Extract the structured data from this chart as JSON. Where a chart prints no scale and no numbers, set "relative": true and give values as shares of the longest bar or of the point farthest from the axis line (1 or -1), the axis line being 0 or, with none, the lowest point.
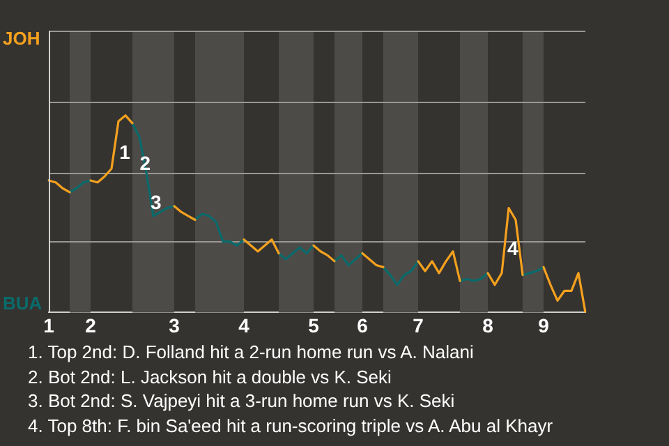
{
  "chart_data": {
    "type": "line",
    "relative": true,
    "categories": [
      "1",
      null,
      null,
      null,
      null,
      null,
      "2",
      null,
      null,
      null,
      null,
      null,
      null,
      null,
      null,
      null,
      null,
      null,
      "3",
      null,
      null,
      null,
      null,
      null,
      null,
      null,
      null,
      null,
      "4",
      null,
      null,
      null,
      null,
      null,
      null,
      null,
      null,
      null,
      "5",
      null,
      null,
      null,
      null,
      null,
      null,
      "6",
      null,
      null,
      null,
      null,
      null,
      null,
      null,
      "7",
      null,
      null,
      null,
      null,
      null,
      null,
      null,
      null,
      null,
      "8",
      null,
      null,
      null,
      null,
      null,
      null,
      null,
      "9",
      null,
      null,
      null,
      null,
      null,
      null
    ],
    "ref_lines": [
      {
        "axis": "y",
        "value": 0.36,
        "color": "#9a9894"
      },
      {
        "axis": "y",
        "value": 0.71,
        "color": "#9a9894"
      },
      {
        "axis": "y",
        "value": 1.07,
        "color": "#9a9894"
      },
      {
        "axis": "y",
        "value": 1.43,
        "color": "#9a9894"
      }
    ],
    "legend": false,
    "marker": "none",
    "line_style": "solid",
    "series": [
      {
        "name": "JOH",
        "color": "#f5a11e",
        "values": [
          0.67,
          0.66,
          0.63,
          0.61,
          null,
          null,
          0.67,
          0.66,
          0.69,
          0.73,
          0.97,
          1,
          0.96,
          null,
          null,
          null,
          null,
          null,
          0.54,
          0.51,
          0.49,
          0.47,
          null,
          null,
          null,
          null,
          null,
          null,
          0.37,
          0.34,
          0.31,
          0.34,
          0.37,
          0.3,
          null,
          null,
          null,
          null,
          0.34,
          0.31,
          0.29,
          0.26,
          null,
          null,
          null,
          0.3,
          0.27,
          0.24,
          0.23,
          null,
          null,
          null,
          null,
          0.26,
          0.21,
          0.26,
          0.2,
          0.26,
          0.31,
          0.16,
          null,
          null,
          null,
          0.2,
          0.14,
          0.2,
          0.53,
          0.47,
          0.19,
          null,
          null,
          0.23,
          0.14,
          0.06,
          0.11,
          0.11,
          0.2,
          0
        ]
      },
      {
        "name": "BUA",
        "color": "#0a6b6b",
        "values": [
          null,
          null,
          null,
          0.61,
          0.63,
          0.66,
          0.67,
          null,
          null,
          null,
          null,
          null,
          0.96,
          0.89,
          0.71,
          0.49,
          0.51,
          0.53,
          0.54,
          null,
          null,
          0.47,
          0.5,
          0.49,
          0.46,
          0.36,
          0.36,
          0.34,
          0.37,
          null,
          null,
          null,
          null,
          0.3,
          0.27,
          0.3,
          0.33,
          0.3,
          0.34,
          null,
          null,
          0.26,
          0.29,
          0.24,
          0.27,
          0.3,
          null,
          null,
          0.23,
          0.19,
          0.14,
          0.19,
          0.21,
          0.26,
          null,
          null,
          null,
          null,
          null,
          0.16,
          0.17,
          0.16,
          0.17,
          0.2,
          null,
          null,
          null,
          null,
          0.19,
          0.2,
          0.21,
          0.23,
          null,
          null,
          null,
          null,
          null,
          null
        ]
      }
    ],
    "annotations": [
      "1",
      "2",
      "3",
      "4",
      "1. Top 2nd: D. Folland hit a 2-run home run vs A. Nalani",
      "2. Bot 2nd: L. Jackson hit a double vs K. Seki",
      "3. Bot 2nd: S. Vajpeyi hit a 3-run home run vs K. Seki",
      "4. Top 8th: F. bin Sa'eed hit a run-scoring triple vs A. Abu al Khayr"
    ]
  }
}
